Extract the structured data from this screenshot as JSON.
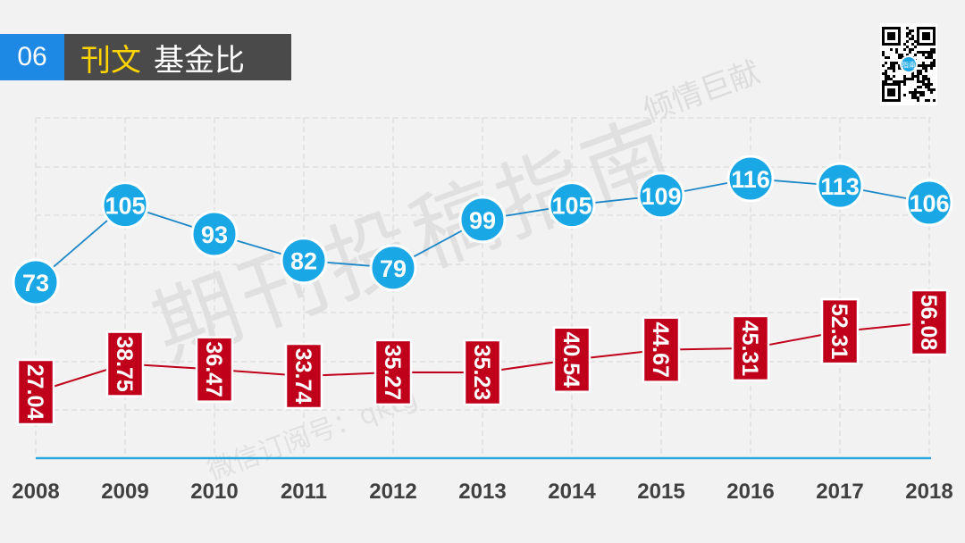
{
  "header": {
    "number": "06",
    "title_highlight": "刊文",
    "title_rest": "基金比"
  },
  "watermark": {
    "main": "期刊投稿指南",
    "sub": "微信订阅号：qktg",
    "top": "倾情巨献"
  },
  "qr": {
    "icon": "qr-code-icon",
    "center_label": "指南"
  },
  "colors": {
    "blue_series": "#1aa7e6",
    "red_series": "#c0001b",
    "axis": "#29a8df",
    "title_highlight": "#ffd400"
  },
  "chart_data": {
    "type": "line",
    "categories": [
      "2008",
      "2009",
      "2010",
      "2011",
      "2012",
      "2013",
      "2014",
      "2015",
      "2016",
      "2017",
      "2018"
    ],
    "series": [
      {
        "values": [
          73,
          105,
          93,
          82,
          79,
          99,
          105,
          109,
          116,
          113,
          106
        ],
        "labels": [
          "73",
          "105",
          "93",
          "82",
          "79",
          "99",
          "105",
          "109",
          "116",
          "113",
          "106"
        ]
      },
      {
        "values": [
          27.04,
          38.75,
          36.47,
          33.74,
          35.27,
          35.23,
          40.54,
          44.67,
          45.31,
          52.31,
          56.08
        ],
        "labels": [
          "27.04",
          "38.75",
          "36.47",
          "33.74",
          "35.27",
          "35.23",
          "40.54",
          "44.67",
          "45.31",
          "52.31",
          "56.08"
        ]
      }
    ],
    "grid": true
  }
}
